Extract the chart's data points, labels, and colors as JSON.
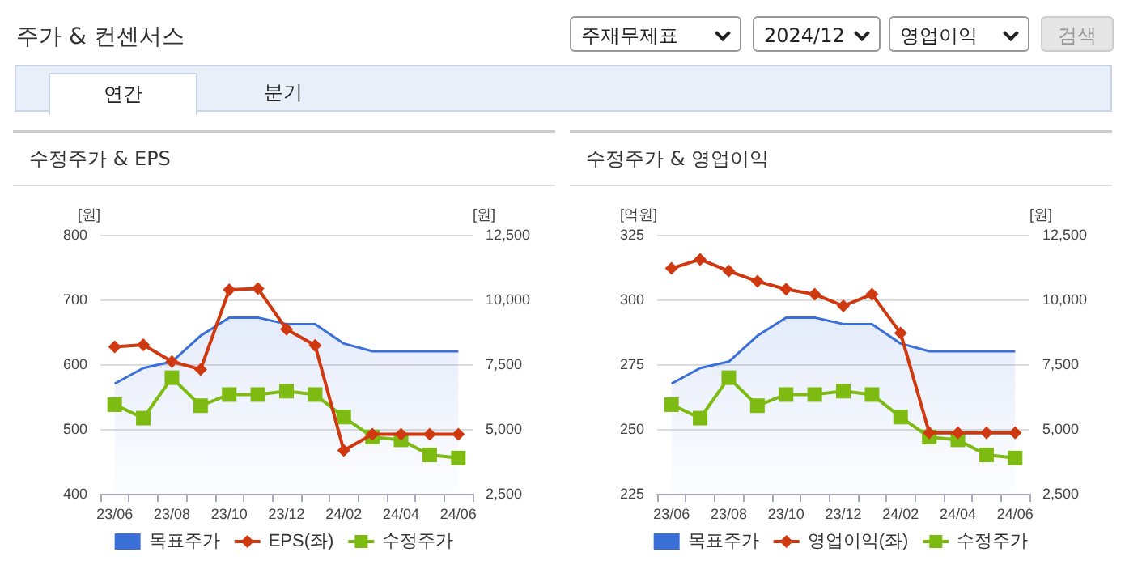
{
  "chart_data": [
    {
      "type": "other",
      "title": "주가 & 컨센서스",
      "annotations": [
        "주재무제표",
        "2024/12",
        "영업이익",
        "검색",
        "연간",
        "분기"
      ]
    },
    {
      "type": "line",
      "title": "수정주가 & EPS",
      "ylabel": "[원]",
      "y2label": "[원]",
      "categories": [
        "23/06",
        null,
        "23/08",
        null,
        "23/10",
        null,
        "23/12",
        null,
        "24/02",
        null,
        "24/04",
        null,
        "24/06"
      ],
      "series": [
        {
          "name": "목표주가",
          "type": "area",
          "axis": "y2",
          "color": "#3a6fd8",
          "marker": "none",
          "values": [
            6750,
            7350,
            7600,
            8600,
            9300,
            9300,
            9050,
            9050,
            8300,
            8000,
            8000,
            8000,
            8000
          ]
        },
        {
          "name": "EPS(좌)",
          "type": "line",
          "color": "#d0380f",
          "marker": "diamond",
          "values": [
            627,
            630,
            604,
            592,
            715,
            717,
            654,
            629,
            467,
            492,
            492,
            492,
            492
          ]
        },
        {
          "name": "수정주가",
          "type": "line",
          "axis": "y2",
          "color": "#7dbb13",
          "marker": "square",
          "values": [
            5940,
            5420,
            6980,
            5900,
            6330,
            6330,
            6460,
            6330,
            5460,
            4690,
            4580,
            4000,
            3880
          ]
        }
      ],
      "ylim": [
        400,
        800
      ],
      "yticks": [
        400,
        500,
        600,
        700,
        800
      ],
      "y2lim": [
        2500,
        12500
      ],
      "y2ticks": [
        {
          "value": 2500,
          "label": "2,500"
        },
        {
          "value": 5000,
          "label": "5,000"
        },
        {
          "value": 7500,
          "label": "7,500"
        },
        {
          "value": 10000,
          "label": "10,000"
        },
        {
          "value": 12500,
          "label": "12,500"
        }
      ],
      "grid": "y",
      "legend": "bottom"
    },
    {
      "type": "line",
      "title": "수정주가 & 영업이익",
      "ylabel": "[억원]",
      "y2label": "[원]",
      "categories": [
        "23/06",
        null,
        "23/08",
        null,
        "23/10",
        null,
        "23/12",
        null,
        "24/02",
        null,
        "24/04",
        null,
        "24/06"
      ],
      "series": [
        {
          "name": "목표주가",
          "type": "area",
          "axis": "y2",
          "color": "#3a6fd8",
          "marker": "none",
          "values": [
            6750,
            7350,
            7600,
            8600,
            9300,
            9300,
            9050,
            9050,
            8300,
            8000,
            8000,
            8000,
            8000
          ]
        },
        {
          "name": "영업이익(좌)",
          "type": "line",
          "color": "#d0380f",
          "marker": "diamond",
          "values": [
            312,
            315.5,
            311,
            307,
            304,
            302,
            297.5,
            302,
            287,
            248.5,
            248.5,
            248.5,
            248.5
          ]
        },
        {
          "name": "수정주가",
          "type": "line",
          "axis": "y2",
          "color": "#7dbb13",
          "marker": "square",
          "values": [
            5940,
            5420,
            6980,
            5900,
            6330,
            6330,
            6460,
            6330,
            5460,
            4690,
            4580,
            4000,
            3880
          ]
        }
      ],
      "ylim": [
        225,
        325
      ],
      "yticks": [
        225,
        250,
        275,
        300,
        325
      ],
      "y2lim": [
        2500,
        12500
      ],
      "y2ticks": [
        {
          "value": 2500,
          "label": "2,500"
        },
        {
          "value": 5000,
          "label": "5,000"
        },
        {
          "value": 7500,
          "label": "7,500"
        },
        {
          "value": 10000,
          "label": "10,000"
        },
        {
          "value": 12500,
          "label": "12,500"
        }
      ],
      "grid": "y",
      "legend": "bottom"
    }
  ]
}
